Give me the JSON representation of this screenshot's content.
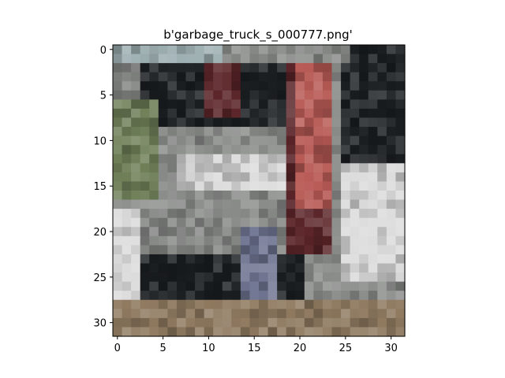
{
  "figure": {
    "title": "b'garbage_truck_s_000777.png'"
  },
  "image": {
    "description_icon": "pixelated-photo",
    "grid_size": [
      32,
      32
    ],
    "x_ticks": [
      "0",
      "5",
      "10",
      "15",
      "20",
      "25",
      "30"
    ],
    "y_ticks": [
      "0",
      "5",
      "10",
      "15",
      "20",
      "25",
      "30"
    ],
    "palette": {
      "sky": "#9fb0b3",
      "dark": "#1b1f22",
      "foliage": "#6f7f58",
      "gray": "#8a8c8a",
      "light": "#dcdcdc",
      "red": "#b85a55",
      "darkred": "#5a2428",
      "ground": "#8f7a60",
      "blue": "#6e7390"
    }
  }
}
